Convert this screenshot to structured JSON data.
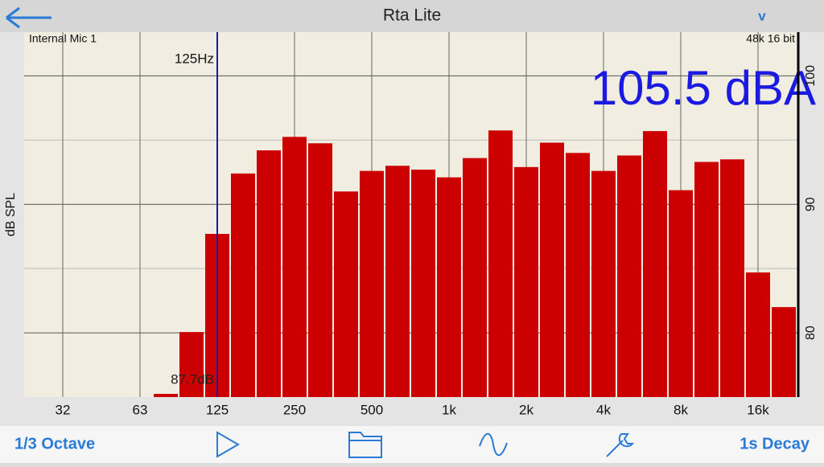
{
  "app": {
    "title": "Rta Lite",
    "menu": "v",
    "source": "Internal Mic 1",
    "format": "48k 16 bit",
    "level": "105.5 dBA",
    "bottom_left": "1/3 Octave",
    "bottom_right": "1s Decay"
  },
  "chart_data": {
    "type": "bar",
    "color": "#cc0000",
    "y_label": "dB SPL",
    "categories": [
      null,
      "32",
      null,
      null,
      "63",
      null,
      null,
      "125",
      null,
      null,
      "250",
      null,
      null,
      "500",
      null,
      null,
      "1k",
      null,
      null,
      "2k",
      null,
      null,
      "4k",
      null,
      null,
      "8k",
      null,
      null,
      "16k",
      null
    ],
    "values": [
      null,
      null,
      null,
      null,
      null,
      75.25,
      80.06,
      87.7,
      92.4,
      94.2,
      95.25,
      94.75,
      91.0,
      92.6,
      93.0,
      92.7,
      92.1,
      93.6,
      95.75,
      92.9,
      94.8,
      94.0,
      92.6,
      93.8,
      95.7,
      91.1,
      93.3,
      93.5,
      84.7,
      82.0
    ],
    "ylim": [
      75,
      103.4
    ],
    "yticks": [
      80,
      90,
      100
    ],
    "y_minor_ticks": [
      85,
      95
    ],
    "grid": true,
    "cursor": {
      "index": 7,
      "label": "125Hz",
      "value_label": "87.7dB",
      "color": "#1a1aa8"
    }
  }
}
